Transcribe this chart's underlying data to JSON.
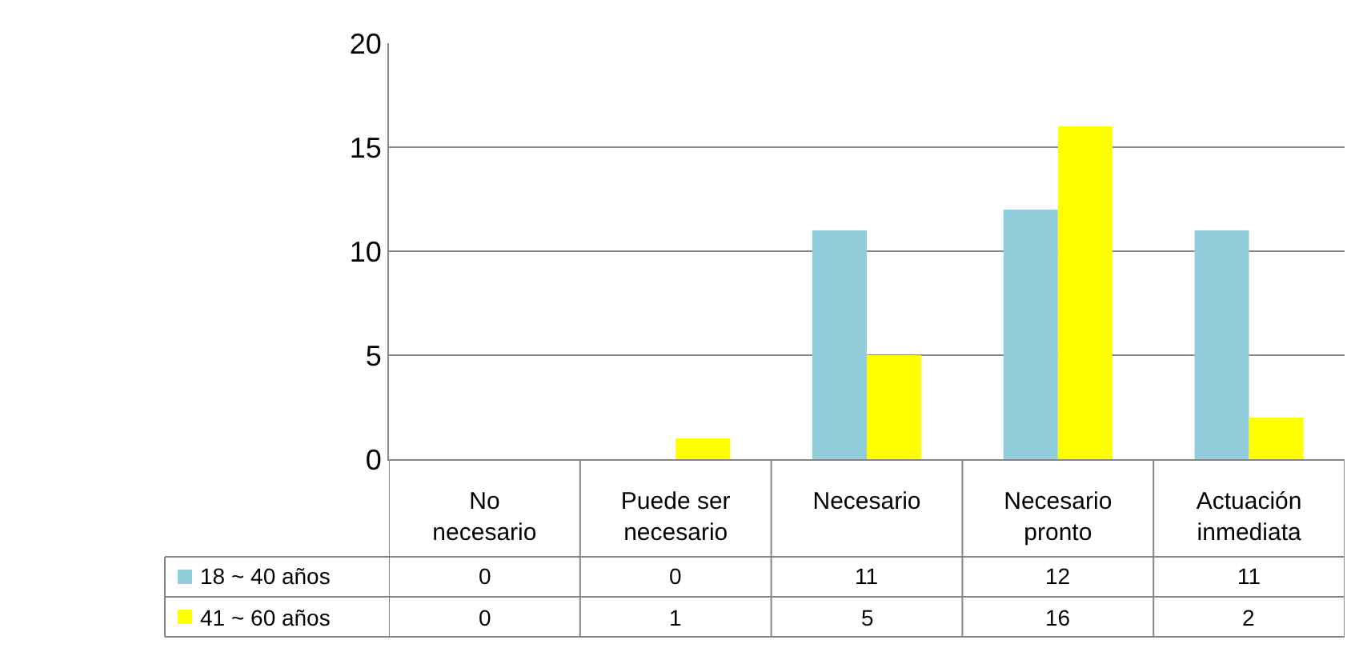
{
  "chart_data": {
    "type": "bar",
    "categories": [
      "No necesario",
      "Puede ser necesario",
      "Necesario",
      "Necesario pronto",
      "Actuación inmediata"
    ],
    "series": [
      {
        "name": "18 ~ 40 años",
        "color": "#92cddc",
        "values": [
          0,
          0,
          11,
          12,
          11
        ]
      },
      {
        "name": "41 ~ 60 años",
        "color": "#ffff00",
        "values": [
          0,
          1,
          5,
          16,
          2
        ]
      }
    ],
    "ylim": [
      0,
      20
    ],
    "yticks": [
      0,
      5,
      10,
      15,
      20
    ],
    "grid": "y",
    "data_labels": true,
    "legend": "bottom"
  }
}
